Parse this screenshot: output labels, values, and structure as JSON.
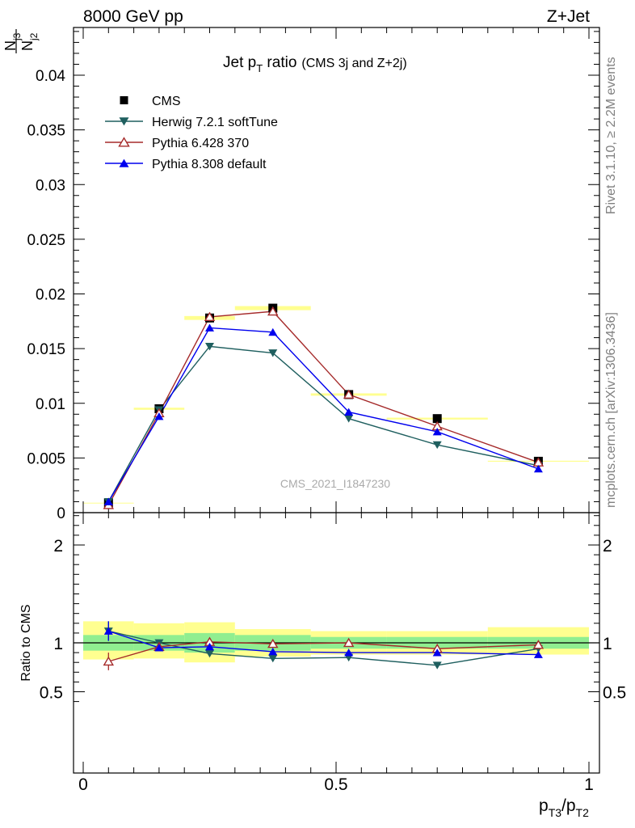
{
  "header": {
    "left": "8000 GeV pp",
    "right": "Z+Jet"
  },
  "side_labels": {
    "rivet": "Rivet 3.1.10, ≥ 2.2M events",
    "mcplots": "mcplots.cern.ch [arXiv:1306.3436]"
  },
  "watermark": "CMS_2021_I1847230",
  "colors": {
    "cms": "#000000",
    "herwig": "#1f5f5f",
    "pythia6": "#a52a2a",
    "pythia8": "#0000ee",
    "band_inner": "#90ee90",
    "band_outer": "#ffff90"
  },
  "chart_data": [
    {
      "type": "line",
      "title": "Jet p_T ratio (CMS 3j and Z+2j)",
      "title_main": "Jet p",
      "title_sub": "T",
      "title_rest": " ratio",
      "title_note": "(CMS 3j and Z+2j)",
      "ylabel_num": "N",
      "ylabel_num_sub": "j3",
      "ylabel_den": "N",
      "ylabel_den_sub": "j2",
      "xlim": [
        0,
        1
      ],
      "ylim": [
        0,
        0.044
      ],
      "yticks": [
        "0",
        "0.005",
        "0.01",
        "0.015",
        "0.02",
        "0.025",
        "0.03",
        "0.035",
        "0.04"
      ],
      "ytick_values": [
        0,
        0.005,
        0.01,
        0.015,
        0.02,
        0.025,
        0.03,
        0.035,
        0.04
      ],
      "x": [
        0.05,
        0.15,
        0.25,
        0.375,
        0.525,
        0.7,
        0.9
      ],
      "series": [
        {
          "name": "CMS",
          "key": "cms",
          "marker": "square",
          "values": [
            0.0009,
            0.0095,
            0.0178,
            0.0187,
            0.0108,
            0.0086,
            0.0047
          ]
        },
        {
          "name": "Herwig 7.2.1 softTune",
          "key": "herwig",
          "marker": "triangle-down",
          "values": [
            0.001,
            0.0094,
            0.0152,
            0.0146,
            0.0086,
            0.0062,
            0.0043
          ],
          "errors": [
            0,
            0,
            0.0003,
            0.0003,
            0,
            0,
            0
          ]
        },
        {
          "name": "Pythia 6.428 370",
          "key": "pythia6",
          "marker": "triangle-open",
          "values": [
            0.0007,
            0.0091,
            0.0179,
            0.0184,
            0.0108,
            0.0079,
            0.0046
          ],
          "errors": [
            0,
            0,
            0.0004,
            0.0003,
            0,
            0,
            0
          ]
        },
        {
          "name": "Pythia 8.308 default",
          "key": "pythia8",
          "marker": "triangle-up",
          "values": [
            0.001,
            0.0088,
            0.0169,
            0.0165,
            0.0092,
            0.0074,
            0.004
          ],
          "errors": [
            0,
            0,
            0.0003,
            0.0003,
            0,
            0,
            0
          ]
        }
      ],
      "legend_position": "top-left"
    },
    {
      "type": "line",
      "ylabel": "Ratio to CMS",
      "xlabel_main": "p",
      "xlabel_sub1": "T3",
      "xlabel_sep": "/p",
      "xlabel_sub2": "T2",
      "xlim": [
        0,
        1
      ],
      "ylim": [
        0.35,
        2.3
      ],
      "xticks": [
        "0",
        "0.5",
        "1"
      ],
      "xtick_values": [
        0,
        0.5,
        1
      ],
      "yticks": [
        "0.5",
        "1",
        "2"
      ],
      "ytick_values": [
        0.5,
        1,
        2
      ],
      "bins": [
        [
          0,
          0.1
        ],
        [
          0.1,
          0.2
        ],
        [
          0.2,
          0.3
        ],
        [
          0.3,
          0.45
        ],
        [
          0.45,
          0.6
        ],
        [
          0.6,
          0.8
        ],
        [
          0.8,
          1.0
        ]
      ],
      "band_inner": [
        [
          0.92,
          1.08
        ],
        [
          0.92,
          1.08
        ],
        [
          0.9,
          1.1
        ],
        [
          0.92,
          1.08
        ],
        [
          0.94,
          1.06
        ],
        [
          0.94,
          1.06
        ],
        [
          0.94,
          1.06
        ]
      ],
      "band_outer": [
        [
          0.83,
          1.22
        ],
        [
          0.84,
          1.2
        ],
        [
          0.8,
          1.21
        ],
        [
          0.86,
          1.14
        ],
        [
          0.88,
          1.12
        ],
        [
          0.88,
          1.12
        ],
        [
          0.88,
          1.16
        ]
      ],
      "x": [
        0.05,
        0.15,
        0.25,
        0.375,
        0.525,
        0.7,
        0.9
      ],
      "series": [
        {
          "name": "Herwig 7.2.1 softTune",
          "key": "herwig",
          "marker": "triangle-down",
          "values": [
            1.12,
            1.0,
            0.89,
            0.84,
            0.85,
            0.77,
            0.94
          ],
          "errors": [
            0.1,
            0,
            0,
            0,
            0.03,
            0.03,
            0.04
          ]
        },
        {
          "name": "Pythia 6.428 370",
          "key": "pythia6",
          "marker": "triangle-open",
          "values": [
            0.81,
            0.96,
            1.01,
            0.99,
            1.0,
            0.94,
            0.98
          ],
          "errors": [
            0.09,
            0,
            0,
            0,
            0,
            0,
            0
          ]
        },
        {
          "name": "Pythia 8.308 default",
          "key": "pythia8",
          "marker": "triangle-up",
          "values": [
            1.12,
            0.95,
            0.96,
            0.91,
            0.9,
            0.9,
            0.88
          ],
          "errors": [
            0.1,
            0,
            0,
            0,
            0.02,
            0.02,
            0.03
          ]
        }
      ]
    }
  ]
}
